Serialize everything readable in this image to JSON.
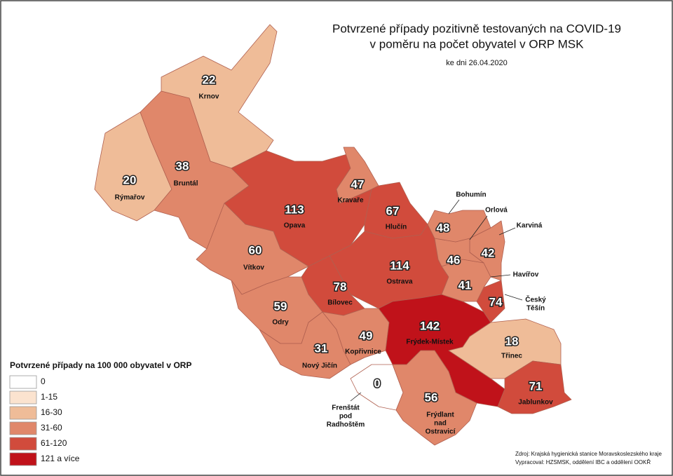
{
  "header": {
    "title_lines": [
      "Potvrzené případy pozitivně testovaných na COVID-19",
      "v poměru na počet obyvatel v ORP MSK"
    ],
    "date": "ke dni 26.04.2020"
  },
  "regions": [
    {
      "name": [
        "Krnov"
      ],
      "value": 22,
      "color": "#efbc98"
    },
    {
      "name": [
        "Rýmařov"
      ],
      "value": 20,
      "color": "#efbc98"
    },
    {
      "name": [
        "Bruntál"
      ],
      "value": 38,
      "color": "#e0876a"
    },
    {
      "name": [
        "Opava"
      ],
      "value": 113,
      "color": "#d14b3c"
    },
    {
      "name": [
        "Kravaře"
      ],
      "value": 47,
      "color": "#e0876a"
    },
    {
      "name": [
        "Hlučín"
      ],
      "value": 67,
      "color": "#d14b3c"
    },
    {
      "name": [
        "Vítkov"
      ],
      "value": 60,
      "color": "#e0876a"
    },
    {
      "name": [
        "Ostrava"
      ],
      "value": 114,
      "color": "#d14b3c"
    },
    {
      "name": [
        "Bílovec"
      ],
      "value": 78,
      "color": "#d14b3c"
    },
    {
      "name": [
        "Odry"
      ],
      "value": 59,
      "color": "#e0876a"
    },
    {
      "name": [
        "Nový Jičín"
      ],
      "value": 31,
      "color": "#e0876a"
    },
    {
      "name": [
        "Kopřivnice"
      ],
      "value": 49,
      "color": "#e0876a"
    },
    {
      "name": [
        "Frenštát",
        "pod",
        "Radhoštěm"
      ],
      "value": 0,
      "color": "#ffffff"
    },
    {
      "name": [
        "Frýdek-Místek"
      ],
      "value": 142,
      "color": "#c0121a"
    },
    {
      "name": [
        "Frýdlant",
        "nad",
        "Ostravicí"
      ],
      "value": 56,
      "color": "#e0876a"
    },
    {
      "name": [
        "Třinec"
      ],
      "value": 18,
      "color": "#efbc98"
    },
    {
      "name": [
        "Jablunkov"
      ],
      "value": 71,
      "color": "#d14b3c"
    },
    {
      "name": [
        "Český",
        "Těšín"
      ],
      "value": 74,
      "color": "#d14b3c"
    },
    {
      "name": [
        "Havířov"
      ],
      "value": 41,
      "color": "#e0876a"
    },
    {
      "name": [
        "Karviná"
      ],
      "value": 42,
      "color": "#e0876a"
    },
    {
      "name": [
        "Orlová"
      ],
      "value": 46,
      "color": "#e0876a"
    },
    {
      "name": [
        "Bohumín"
      ],
      "value": 48,
      "color": "#e0876a"
    }
  ],
  "legend": {
    "title": "Potvrzené případy na 100 000 obyvatel v ORP",
    "items": [
      {
        "label": "0",
        "color": "#ffffff"
      },
      {
        "label": "1-15",
        "color": "#fbe3cf"
      },
      {
        "label": "16-30",
        "color": "#efbc98"
      },
      {
        "label": "31-60",
        "color": "#e0876a"
      },
      {
        "label": "61-120",
        "color": "#d14b3c"
      },
      {
        "label": "121 a více",
        "color": "#c0121a"
      }
    ]
  },
  "source": [
    "Zdroj: Krajská hygienická stanice Moravskoslezského kraje",
    "Vypracoval: HZSMSK, oddělení IBC a oddělení OOKŘ"
  ]
}
